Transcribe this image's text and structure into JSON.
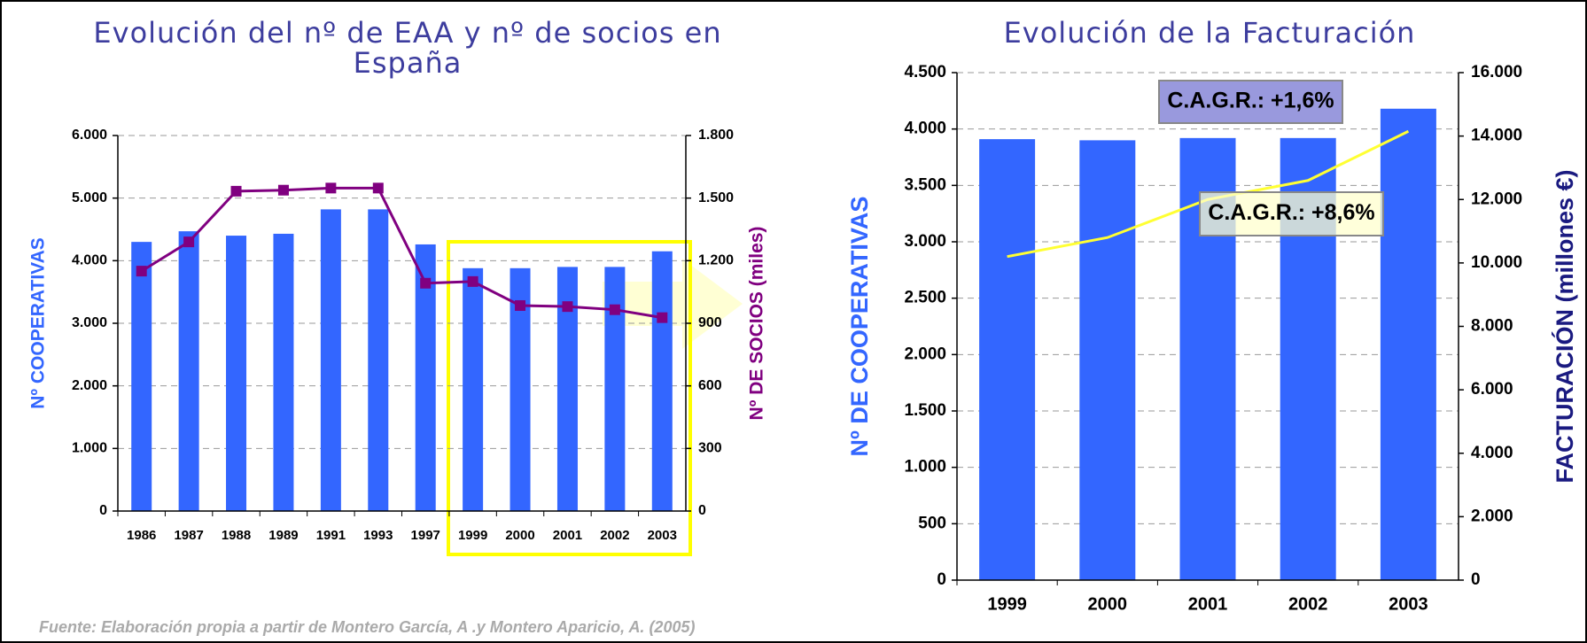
{
  "chart_data": [
    {
      "type": "combo",
      "title": "Evolución del nº de EAA y nº de socios en España",
      "categories": [
        "1986",
        "1987",
        "1988",
        "1989",
        "1991",
        "1993",
        "1997",
        "1999",
        "2000",
        "2001",
        "2002",
        "2003"
      ],
      "series": [
        {
          "mark": "bar",
          "color": "#3366ff",
          "values": [
            4300,
            4470,
            4400,
            4430,
            4820,
            4820,
            4260,
            3880,
            3880,
            3900,
            3900,
            4150
          ]
        },
        {
          "mark": "line",
          "axis": "y2",
          "color": "#800080",
          "markers": true,
          "values": [
            1150,
            1290,
            1533,
            1538,
            1548,
            1548,
            1092,
            1100,
            985,
            980,
            965,
            927
          ]
        }
      ],
      "ylabel": "Nº COOPERATIVAS",
      "y2label": "Nº DE SOCIOS (miles)",
      "ylim": [
        0,
        6000
      ],
      "yticks": [
        0,
        {
          "value": 1000,
          "label": "1.000"
        },
        {
          "value": 2000,
          "label": "2.000"
        },
        {
          "value": 3000,
          "label": "3.000"
        },
        {
          "value": 4000,
          "label": "4.000"
        },
        {
          "value": 5000,
          "label": "5.000"
        },
        {
          "value": 6000,
          "label": "6.000"
        }
      ],
      "y2lim": [
        0,
        1800
      ],
      "y2ticks": [
        0,
        300,
        600,
        900,
        {
          "value": 1200,
          "label": "1.200"
        },
        {
          "value": 1500,
          "label": "1.500"
        },
        {
          "value": 1800,
          "label": "1.800"
        }
      ],
      "grid": true
    },
    {
      "type": "combo",
      "title": "Evolución de la Facturación",
      "categories": [
        "1999",
        "2000",
        "2001",
        "2002",
        "2003"
      ],
      "series": [
        {
          "mark": "bar",
          "color": "#3366ff",
          "values": [
            3910,
            3900,
            3920,
            3920,
            4180
          ]
        },
        {
          "mark": "line",
          "axis": "y2",
          "color": "#ffff33",
          "markers": false,
          "values": [
            10200,
            10800,
            12000,
            12600,
            14150
          ]
        }
      ],
      "ylabel": "Nº DE COOPERATIVAS",
      "y2label": "FACTURACIÓN (millones €)",
      "ylim": [
        0,
        4500
      ],
      "yticks": [
        0,
        500,
        {
          "value": 1000,
          "label": "1.000"
        },
        {
          "value": 1500,
          "label": "1.500"
        },
        {
          "value": 2000,
          "label": "2.000"
        },
        {
          "value": 2500,
          "label": "2.500"
        },
        {
          "value": 3000,
          "label": "3.000"
        },
        {
          "value": 3500,
          "label": "3.500"
        },
        {
          "value": 4000,
          "label": "4.000"
        },
        {
          "value": 4500,
          "label": "4.500"
        }
      ],
      "y2lim": [
        0,
        16000
      ],
      "y2ticks": [
        0,
        {
          "value": 2000,
          "label": "2.000"
        },
        {
          "value": 4000,
          "label": "4.000"
        },
        {
          "value": 6000,
          "label": "6.000"
        },
        {
          "value": 8000,
          "label": "8.000"
        },
        {
          "value": 10000,
          "label": "10.000"
        },
        {
          "value": 12000,
          "label": "12.000"
        },
        {
          "value": 14000,
          "label": "14.000"
        },
        {
          "value": 16000,
          "label": "16.000"
        }
      ],
      "annotations": [
        "C.A.G.R.: +1,6%",
        "C.A.G.R.: +8,6%"
      ],
      "grid": true
    }
  ],
  "source": "Fuente: Elaboración propia a partir de Montero García, A .y Montero Aparicio, A. (2005)"
}
